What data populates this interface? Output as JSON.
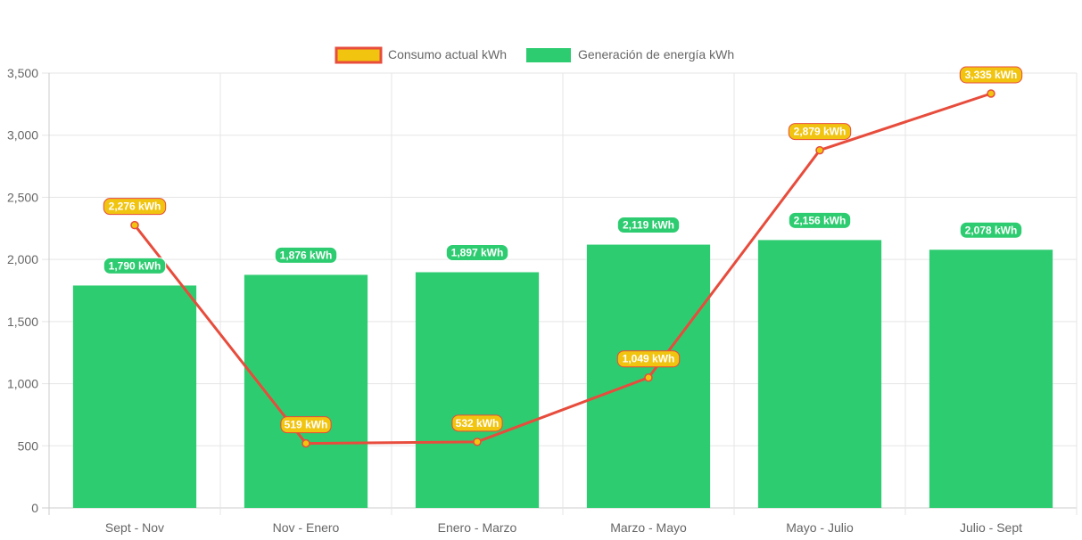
{
  "chart_data": {
    "type": "bar",
    "categories": [
      "Sept - Nov",
      "Nov - Enero",
      "Enero - Marzo",
      "Marzo - Mayo",
      "Mayo - Julio",
      "Julio - Sept"
    ],
    "series": [
      {
        "name": "Consumo actual kWh",
        "type": "line",
        "color": "#e74c3c",
        "point_color": "#f1c40f",
        "values": [
          2276,
          519,
          532,
          1049,
          2879,
          3335
        ],
        "labels": [
          "2,276 kWh",
          "519 kWh",
          "532 kWh",
          "1,049 kWh",
          "2,879 kWh",
          "3,335 kWh"
        ]
      },
      {
        "name": "Generación de energía kWh",
        "type": "bar",
        "color": "#2ecc71",
        "values": [
          1790,
          1876,
          1897,
          2119,
          2156,
          2078
        ],
        "labels": [
          "1,790 kWh",
          "1,876 kWh",
          "1,897 kWh",
          "2,119 kWh",
          "2,156 kWh",
          "2,078 kWh"
        ]
      }
    ],
    "ylim": [
      0,
      3500
    ],
    "yticks": [
      "0",
      "500",
      "1,000",
      "1,500",
      "2,000",
      "2,500",
      "3,000",
      "3,500"
    ],
    "title": "",
    "xlabel": "",
    "ylabel": "",
    "grid": true,
    "legend_position": "top-center"
  }
}
